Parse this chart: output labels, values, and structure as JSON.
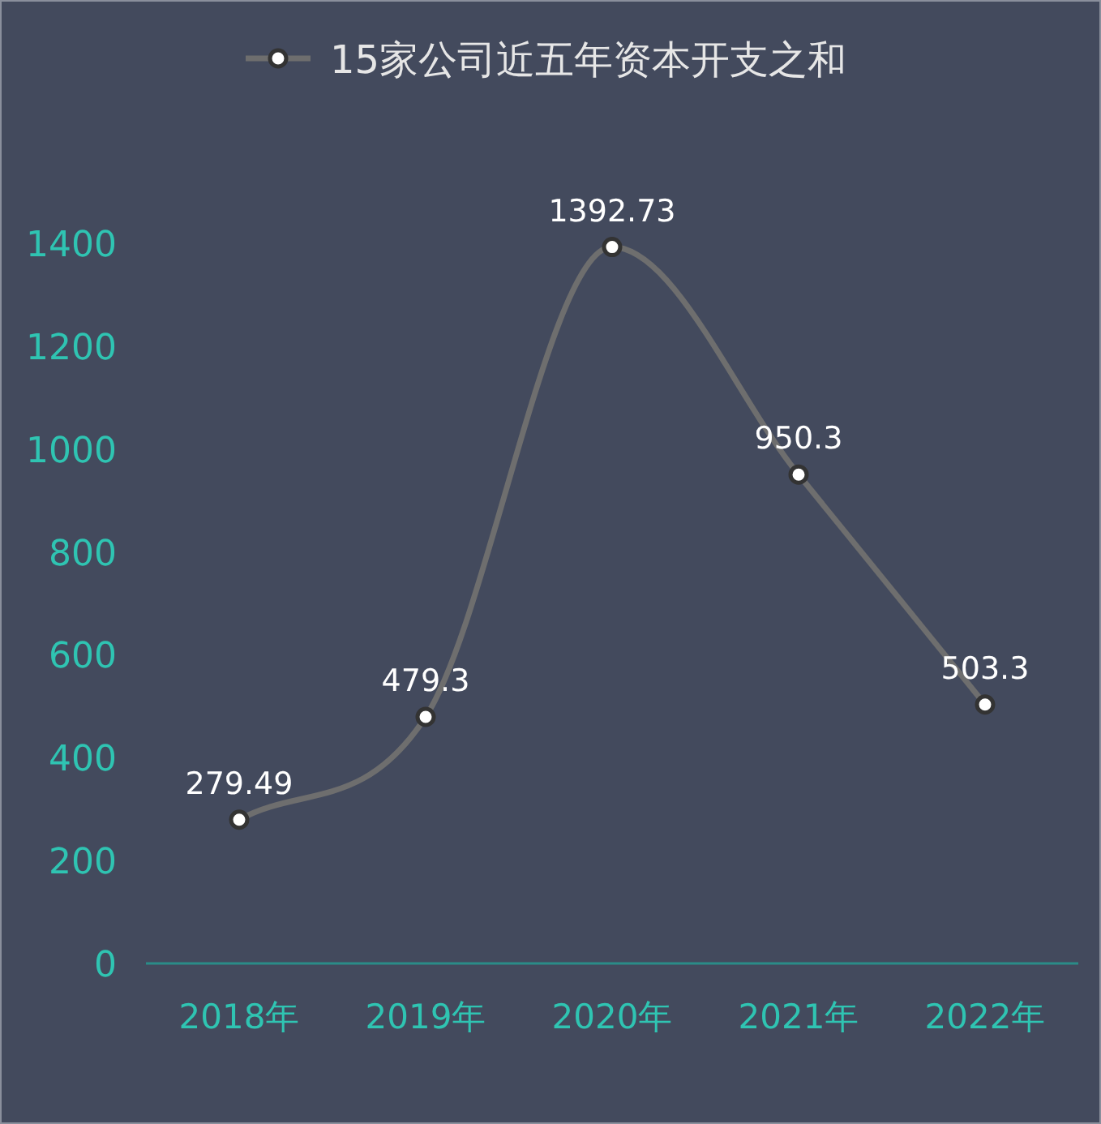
{
  "chart_data": {
    "type": "line",
    "categories": [
      "2018年",
      "2019年",
      "2020年",
      "2021年",
      "2022年"
    ],
    "series": [
      {
        "name": "15家公司近五年资本开支之和",
        "color": "#6e6e6e",
        "values": [
          279.49,
          479.3,
          1392.73,
          950.3,
          503.3
        ]
      }
    ],
    "ylim": [
      0,
      1400
    ],
    "yticks": [
      0,
      200,
      400,
      600,
      800,
      1000,
      1200,
      1400
    ],
    "data_labels": true,
    "legend": "top",
    "marker": "circle",
    "line_style": "solid",
    "grid": false
  }
}
